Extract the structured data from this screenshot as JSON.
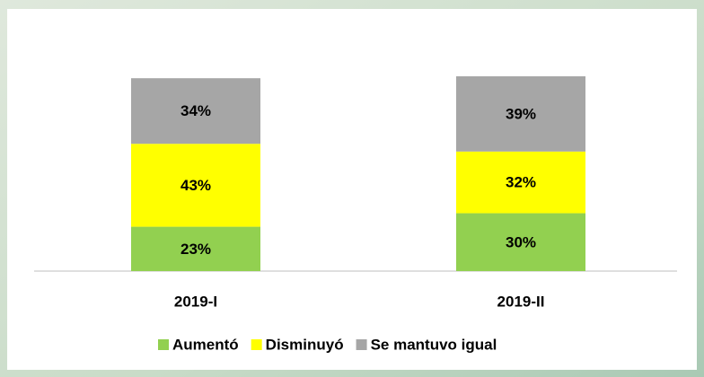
{
  "chart_data": {
    "type": "stacked_bar",
    "categories": [
      "2019-I",
      "2019-II"
    ],
    "series": [
      {
        "name": "Aumentó",
        "color": "#92d050",
        "values": [
          23,
          30
        ],
        "value_labels": [
          "23%",
          "30%"
        ]
      },
      {
        "name": "Disminuyó",
        "color": "#ffff00",
        "values": [
          43,
          32
        ],
        "value_labels": [
          "43%",
          "32%"
        ]
      },
      {
        "name": "Se mantuvo igual",
        "color": "#a6a6a6",
        "values": [
          34,
          39
        ],
        "value_labels": [
          "34%",
          "39%"
        ]
      }
    ],
    "legend": "bottom"
  }
}
